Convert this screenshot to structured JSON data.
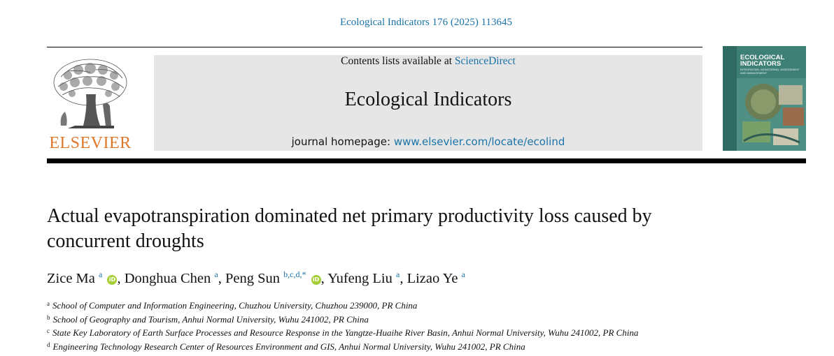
{
  "header": {
    "journal_reference": "Ecological Indicators 176 (2025) 113645",
    "contents_prefix": "Contents lists available at ",
    "contents_link": "ScienceDirect",
    "journal_name": "Ecological Indicators",
    "homepage_prefix": "journal homepage: ",
    "homepage_link": "www.elsevier.com/locate/ecolind",
    "publisher_logo_text": "ELSEVIER"
  },
  "cover": {
    "title": "ECOLOGICAL INDICATORS",
    "subtitle": "INTEGRATING, MONITORING, ASSESSMENT AND MANAGEMENT"
  },
  "article": {
    "title": "Actual evapotranspiration dominated net primary productivity loss caused by concurrent droughts",
    "authors": [
      {
        "name": "Zice Ma",
        "marks": "a",
        "orcid": true
      },
      {
        "name": "Donghua Chen",
        "marks": "a",
        "orcid": false
      },
      {
        "name": "Peng Sun",
        "marks": "b,c,d,*",
        "orcid": true
      },
      {
        "name": "Yufeng Liu",
        "marks": "a",
        "orcid": false
      },
      {
        "name": "Lizao Ye",
        "marks": "a",
        "orcid": false
      }
    ],
    "affiliations": [
      {
        "mark": "a",
        "text": "School of Computer and Information Engineering, Chuzhou University, Chuzhou 239000, PR China"
      },
      {
        "mark": "b",
        "text": "School of Geography and Tourism, Anhui Normal University, Wuhu 241002, PR China"
      },
      {
        "mark": "c",
        "text": "State Key Laboratory of Earth Surface Processes and Resource Response in the Yangtze-Huaihe River Basin, Anhui Normal University, Wuhu 241002, PR China"
      },
      {
        "mark": "d",
        "text": "Engineering Technology Research Center of Resources Environment and GIS, Anhui Normal University, Wuhu 241002, PR China"
      }
    ],
    "orcid_icon_text": "iD"
  },
  "colors": {
    "link": "#1a73a8",
    "elsevier_orange": "#e0782b",
    "orcid_green": "#a6ce39",
    "banner_grey": "#e6e6e6"
  }
}
